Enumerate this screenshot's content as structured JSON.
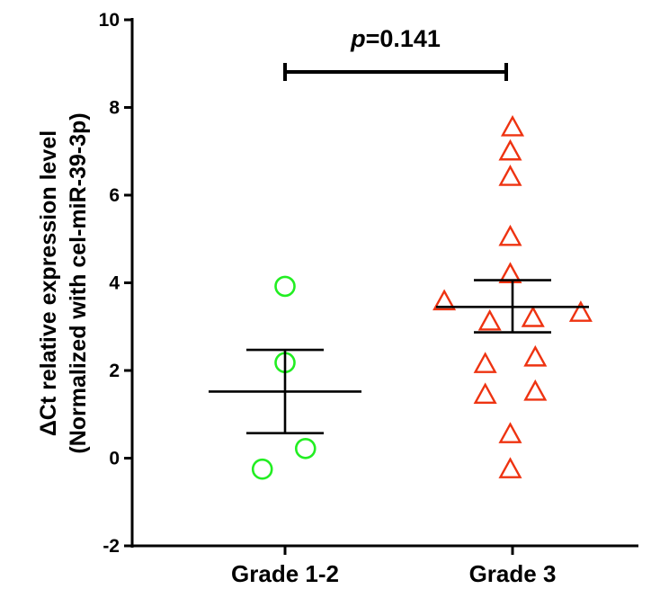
{
  "chart_data": {
    "type": "scatter",
    "title": "",
    "pvalue": {
      "prefix": "p",
      "value": "=0.141"
    },
    "ylabel_line1": "ΔCt  relative expression level",
    "ylabel_line2": "(Normalized with cel-miR-39-3p)",
    "xlabel": "",
    "ylim": [
      -2,
      10
    ],
    "yticks": [
      -2,
      0,
      2,
      4,
      6,
      8,
      10
    ],
    "ytick_labels": [
      "-2",
      "0",
      "2",
      "4",
      "6",
      "8",
      "10"
    ],
    "categories": [
      "Grade 1-2",
      "Grade 3"
    ],
    "grid": false,
    "legend": "none",
    "series": [
      {
        "category": "Grade 1-2",
        "marker": "circle",
        "color": "#22ee22",
        "mean": 1.52,
        "sem_low": 0.57,
        "sem_high": 2.47,
        "points": [
          {
            "offset": 0.0,
            "y": 3.92
          },
          {
            "offset": 0.0,
            "y": 2.18
          },
          {
            "offset": 0.09,
            "y": 0.22
          },
          {
            "offset": -0.1,
            "y": -0.25
          }
        ]
      },
      {
        "category": "Grade 3",
        "marker": "triangle",
        "color": "#ee3311",
        "mean": 3.45,
        "sem_low": 2.87,
        "sem_high": 4.06,
        "points": [
          {
            "offset": 0.0,
            "y": 7.55
          },
          {
            "offset": -0.01,
            "y": 7.0
          },
          {
            "offset": -0.01,
            "y": 6.42
          },
          {
            "offset": -0.01,
            "y": 5.05
          },
          {
            "offset": -0.01,
            "y": 4.2
          },
          {
            "offset": -0.3,
            "y": 3.58
          },
          {
            "offset": 0.3,
            "y": 3.32
          },
          {
            "offset": -0.1,
            "y": 3.12
          },
          {
            "offset": 0.09,
            "y": 3.2
          },
          {
            "offset": 0.1,
            "y": 2.3
          },
          {
            "offset": -0.12,
            "y": 2.15
          },
          {
            "offset": 0.1,
            "y": 1.52
          },
          {
            "offset": -0.12,
            "y": 1.45
          },
          {
            "offset": -0.01,
            "y": 0.55
          },
          {
            "offset": -0.01,
            "y": -0.25
          }
        ]
      }
    ]
  }
}
